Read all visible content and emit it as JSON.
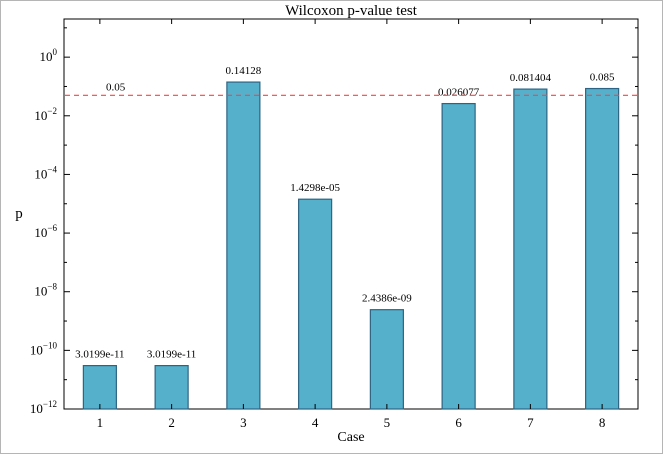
{
  "figure": {
    "title": "Wilcoxon p-value test",
    "xlabel": "Case",
    "ylabel": "p"
  },
  "chart_data": {
    "type": "bar",
    "title": "Wilcoxon p-value test",
    "xlabel": "Case",
    "ylabel": "p",
    "yscale": "log",
    "grid": false,
    "legend": null,
    "categories": [
      "1",
      "2",
      "3",
      "4",
      "5",
      "6",
      "7",
      "8"
    ],
    "values": [
      3.0199e-11,
      3.0199e-11,
      0.14128,
      1.4298e-05,
      2.4386e-09,
      0.026077,
      0.081404,
      0.085
    ],
    "value_labels": [
      "3.0199e-11",
      "3.0199e-11",
      "0.14128",
      "1.4298e-05",
      "2.4386e-09",
      "0.026077",
      "0.081404",
      "0.085"
    ],
    "ylim": [
      1e-12,
      20
    ],
    "ytick_exponents": [
      0,
      -2,
      -4,
      -6,
      -8,
      -10,
      -12
    ],
    "bar_color": "#54b0cb",
    "bar_edge_color": "#2e6483",
    "reference_line": {
      "value": 0.05,
      "label": "0.05",
      "color": "#ff4040",
      "style": "dashed"
    }
  }
}
